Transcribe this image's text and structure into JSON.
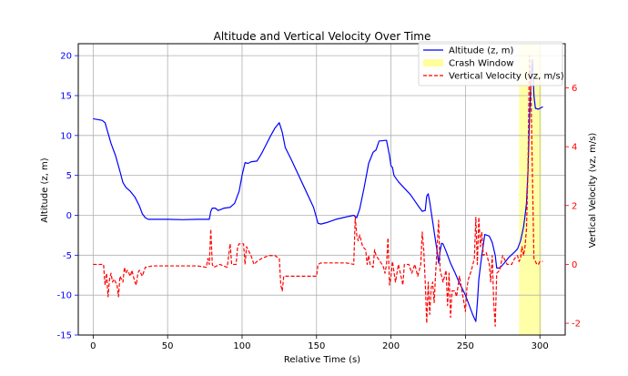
{
  "chart_data": {
    "type": "line",
    "title": "Altitude and Vertical Velocity Over Time",
    "xlabel": "Relative Time (s)",
    "ylabel_left": "Altitude (z, m)",
    "ylabel_right": "Vertical Velocity (vz, m/s)",
    "xlim": [
      -10,
      317
    ],
    "ylim_left": [
      -15,
      21.5
    ],
    "ylim_right": [
      -2.4,
      7.5
    ],
    "x_ticks": [
      0,
      50,
      100,
      150,
      200,
      250,
      300
    ],
    "y_ticks_left": [
      -15,
      -10,
      -5,
      0,
      5,
      10,
      15,
      20
    ],
    "y_ticks_right": [
      -2,
      0,
      2,
      4,
      6
    ],
    "grid": true,
    "legend_position": "top-right",
    "colors": {
      "altitude": "#0000ff",
      "velocity": "#ff0000",
      "crash_window": "#ffff99",
      "left_axis": "#0000ff",
      "right_axis": "#ff0000"
    },
    "crash_window": [
      286,
      301
    ],
    "series": [
      {
        "name": "Altitude (z, m)",
        "axis": "left",
        "style": "solid",
        "points": [
          [
            0,
            12.1
          ],
          [
            6,
            11.9
          ],
          [
            8,
            11.6
          ],
          [
            10,
            10.3
          ],
          [
            12,
            9.0
          ],
          [
            15,
            7.5
          ],
          [
            18,
            5.5
          ],
          [
            20,
            4.1
          ],
          [
            22,
            3.5
          ],
          [
            25,
            3.0
          ],
          [
            28,
            2.3
          ],
          [
            31,
            1.2
          ],
          [
            33,
            0.2
          ],
          [
            35,
            -0.3
          ],
          [
            37,
            -0.5
          ],
          [
            40,
            -0.5
          ],
          [
            50,
            -0.5
          ],
          [
            60,
            -0.55
          ],
          [
            70,
            -0.5
          ],
          [
            78,
            -0.5
          ],
          [
            79,
            0.5
          ],
          [
            80,
            0.9
          ],
          [
            82,
            0.9
          ],
          [
            84,
            0.6
          ],
          [
            88,
            0.9
          ],
          [
            92,
            1.0
          ],
          [
            95,
            1.5
          ],
          [
            98,
            3.0
          ],
          [
            100,
            5.0
          ],
          [
            102,
            6.6
          ],
          [
            104,
            6.5
          ],
          [
            106,
            6.7
          ],
          [
            110,
            6.8
          ],
          [
            113,
            7.7
          ],
          [
            116,
            8.8
          ],
          [
            119,
            9.9
          ],
          [
            122,
            10.9
          ],
          [
            125,
            11.6
          ],
          [
            127,
            10.4
          ],
          [
            129,
            8.5
          ],
          [
            133,
            7.0
          ],
          [
            138,
            5.0
          ],
          [
            143,
            3.0
          ],
          [
            148,
            1.0
          ],
          [
            151,
            -1.0
          ],
          [
            153,
            -1.1
          ],
          [
            157,
            -0.9
          ],
          [
            163,
            -0.5
          ],
          [
            170,
            -0.2
          ],
          [
            175,
            0.0
          ],
          [
            177,
            -0.3
          ],
          [
            179,
            0.8
          ],
          [
            182,
            3.5
          ],
          [
            185,
            6.5
          ],
          [
            188,
            7.9
          ],
          [
            190,
            8.2
          ],
          [
            192,
            9.3
          ],
          [
            197,
            9.4
          ],
          [
            199,
            7.5
          ],
          [
            200,
            6.2
          ],
          [
            201,
            6.0
          ],
          [
            202,
            5.0
          ],
          [
            205,
            4.2
          ],
          [
            210,
            3.2
          ],
          [
            213,
            2.6
          ],
          [
            216,
            1.8
          ],
          [
            219,
            1.0
          ],
          [
            221,
            0.5
          ],
          [
            223,
            0.6
          ],
          [
            224,
            2.4
          ],
          [
            225,
            2.7
          ],
          [
            226,
            1.7
          ],
          [
            228,
            -0.8
          ],
          [
            230,
            -3.3
          ],
          [
            231,
            -4.5
          ],
          [
            232,
            -6.0
          ],
          [
            233,
            -4.5
          ],
          [
            234,
            -3.5
          ],
          [
            235,
            -3.6
          ],
          [
            237,
            -4.5
          ],
          [
            240,
            -6.0
          ],
          [
            243,
            -7.2
          ],
          [
            246,
            -8.5
          ],
          [
            250,
            -10.0
          ],
          [
            253,
            -11.5
          ],
          [
            255,
            -12.5
          ],
          [
            257,
            -13.3
          ],
          [
            258,
            -11.0
          ],
          [
            259,
            -8.0
          ],
          [
            261,
            -5.0
          ],
          [
            263,
            -2.4
          ],
          [
            266,
            -2.6
          ],
          [
            268,
            -3.4
          ],
          [
            270,
            -5.0
          ],
          [
            271,
            -6.6
          ],
          [
            273,
            -6.6
          ],
          [
            276,
            -6.0
          ],
          [
            279,
            -5.3
          ],
          [
            283,
            -4.6
          ],
          [
            285,
            -4.2
          ],
          [
            287,
            -3.2
          ],
          [
            289,
            -1.5
          ],
          [
            290,
            -0.1
          ],
          [
            291,
            1.5
          ],
          [
            292,
            5.5
          ],
          [
            293,
            12.0
          ],
          [
            294,
            17.0
          ],
          [
            295,
            19.5
          ],
          [
            296,
            15.0
          ],
          [
            297,
            13.4
          ],
          [
            299,
            13.3
          ],
          [
            302,
            13.6
          ]
        ]
      },
      {
        "name": "Vertical Velocity (vz, m/s)",
        "axis": "right",
        "style": "dashed",
        "points": [
          [
            0,
            0.0
          ],
          [
            7,
            0.0
          ],
          [
            7.5,
            -0.4
          ],
          [
            8,
            -0.7
          ],
          [
            9,
            -0.3
          ],
          [
            10,
            -1.1
          ],
          [
            11,
            -0.5
          ],
          [
            12,
            -0.3
          ],
          [
            13,
            -0.6
          ],
          [
            14,
            -0.5
          ],
          [
            16,
            -0.7
          ],
          [
            17,
            -1.1
          ],
          [
            18,
            -0.4
          ],
          [
            20,
            -0.6
          ],
          [
            21,
            -0.1
          ],
          [
            22,
            -0.3
          ],
          [
            23,
            -0.2
          ],
          [
            25,
            -0.4
          ],
          [
            26,
            -0.2
          ],
          [
            28,
            -0.6
          ],
          [
            29,
            -0.7
          ],
          [
            30,
            -0.3
          ],
          [
            31,
            -0.2
          ],
          [
            33,
            -0.4
          ],
          [
            35,
            -0.1
          ],
          [
            40,
            -0.05
          ],
          [
            50,
            -0.05
          ],
          [
            60,
            -0.05
          ],
          [
            70,
            -0.05
          ],
          [
            76,
            -0.1
          ],
          [
            77,
            0.2
          ],
          [
            78,
            0.0
          ],
          [
            79,
            1.2
          ],
          [
            80,
            0.0
          ],
          [
            81,
            -0.1
          ],
          [
            85,
            0.0
          ],
          [
            90,
            -0.1
          ],
          [
            92,
            0.7
          ],
          [
            93,
            0.0
          ],
          [
            96,
            0.0
          ],
          [
            97,
            0.6
          ],
          [
            98,
            0.7
          ],
          [
            101,
            0.7
          ],
          [
            102,
            0.0
          ],
          [
            103,
            0.6
          ],
          [
            104,
            0.5
          ],
          [
            106,
            0.3
          ],
          [
            108,
            0.0
          ],
          [
            110,
            0.1
          ],
          [
            113,
            0.2
          ],
          [
            118,
            0.3
          ],
          [
            122,
            0.3
          ],
          [
            125,
            0.2
          ],
          [
            126,
            -0.7
          ],
          [
            127,
            -0.9
          ],
          [
            128,
            -0.4
          ],
          [
            135,
            -0.4
          ],
          [
            140,
            -0.4
          ],
          [
            150,
            -0.4
          ],
          [
            151,
            0.0
          ],
          [
            153,
            0.05
          ],
          [
            160,
            0.05
          ],
          [
            170,
            0.05
          ],
          [
            175,
            0.0
          ],
          [
            176,
            1.6
          ],
          [
            177,
            1.0
          ],
          [
            178,
            0.8
          ],
          [
            179,
            1.0
          ],
          [
            181,
            0.6
          ],
          [
            183,
            0.5
          ],
          [
            184,
            0.0
          ],
          [
            185,
            0.3
          ],
          [
            186,
            0.0
          ],
          [
            188,
            -0.1
          ],
          [
            189,
            0.5
          ],
          [
            190,
            0.3
          ],
          [
            194,
            0.0
          ],
          [
            195,
            -0.1
          ],
          [
            196,
            -0.3
          ],
          [
            197,
            0.0
          ],
          [
            198,
            0.9
          ],
          [
            199,
            -0.7
          ],
          [
            200,
            -0.4
          ],
          [
            201,
            0.1
          ],
          [
            203,
            -0.6
          ],
          [
            205,
            0.0
          ],
          [
            208,
            -0.7
          ],
          [
            209,
            0.0
          ],
          [
            212,
            0.0
          ],
          [
            214,
            -0.3
          ],
          [
            216,
            0.0
          ],
          [
            218,
            -0.4
          ],
          [
            220,
            0.0
          ],
          [
            221,
            1.1
          ],
          [
            222,
            0.5
          ],
          [
            223,
            -0.6
          ],
          [
            224,
            -2.0
          ],
          [
            225,
            -0.6
          ],
          [
            226,
            -1.7
          ],
          [
            227,
            -0.8
          ],
          [
            228,
            -0.6
          ],
          [
            229,
            -1.3
          ],
          [
            230,
            -0.3
          ],
          [
            231,
            0.6
          ],
          [
            232,
            1.5
          ],
          [
            233,
            -0.2
          ],
          [
            235,
            -0.6
          ],
          [
            237,
            -0.2
          ],
          [
            238,
            -1.4
          ],
          [
            239,
            -0.3
          ],
          [
            240,
            -1.8
          ],
          [
            241,
            -0.9
          ],
          [
            243,
            -0.9
          ],
          [
            244,
            -1.1
          ],
          [
            246,
            -0.4
          ],
          [
            248,
            -1.0
          ],
          [
            250,
            -1.6
          ],
          [
            251,
            -0.8
          ],
          [
            252,
            -0.5
          ],
          [
            254,
            -0.2
          ],
          [
            256,
            0.2
          ],
          [
            257,
            1.6
          ],
          [
            258,
            0.0
          ],
          [
            259,
            1.6
          ],
          [
            260,
            0.6
          ],
          [
            261,
            1.1
          ],
          [
            262,
            0.3
          ],
          [
            264,
            0.4
          ],
          [
            266,
            0.0
          ],
          [
            267,
            -0.6
          ],
          [
            268,
            0.3
          ],
          [
            269,
            -1.3
          ],
          [
            270,
            -2.1
          ],
          [
            271,
            -0.3
          ],
          [
            273,
            -0.2
          ],
          [
            275,
            0.3
          ],
          [
            278,
            0.0
          ],
          [
            281,
            0.0
          ],
          [
            283,
            0.2
          ],
          [
            285,
            0.3
          ],
          [
            286,
            0.1
          ],
          [
            287,
            0.2
          ],
          [
            288,
            0.6
          ],
          [
            289,
            0.3
          ],
          [
            290,
            0.6
          ],
          [
            291,
            1.2
          ],
          [
            292,
            3.2
          ],
          [
            293,
            7.1
          ],
          [
            294,
            5.9
          ],
          [
            295,
            3.0
          ],
          [
            296,
            0.2
          ],
          [
            297,
            0.1
          ],
          [
            298,
            0.0
          ],
          [
            299,
            0.0
          ],
          [
            300,
            0.1
          ],
          [
            302,
            0.1
          ]
        ]
      }
    ],
    "legend": [
      {
        "label": "Altitude (z, m)",
        "kind": "line",
        "color": "#0000ff"
      },
      {
        "label": "Crash Window",
        "kind": "patch",
        "color": "#ffff99"
      },
      {
        "label": "Vertical Velocity (vz, m/s)",
        "kind": "dashed",
        "color": "#ff0000"
      }
    ]
  }
}
